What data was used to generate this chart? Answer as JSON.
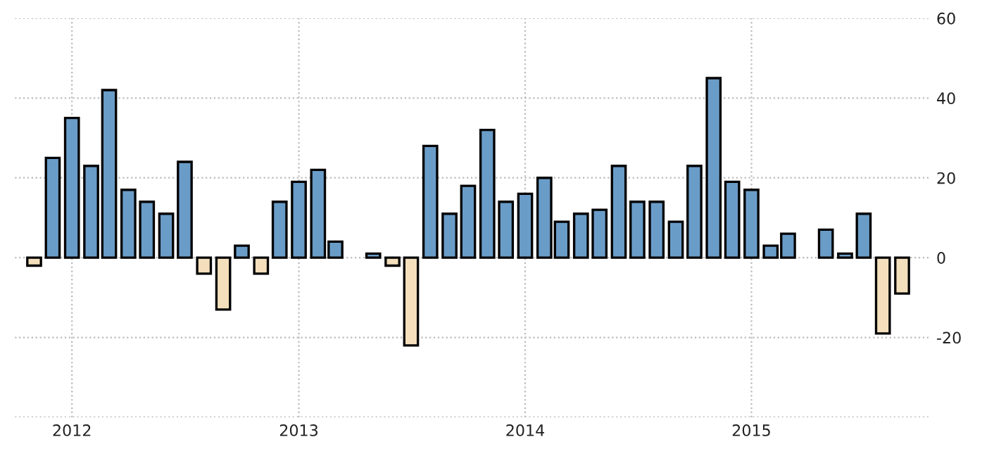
{
  "chart_data": {
    "type": "bar",
    "x": [
      "2011-11",
      "2011-12",
      "2012-01",
      "2012-02",
      "2012-03",
      "2012-04",
      "2012-05",
      "2012-06",
      "2012-07",
      "2012-08",
      "2012-09",
      "2012-10",
      "2012-11",
      "2012-12",
      "2013-01",
      "2013-02",
      "2013-03",
      "2013-04",
      "2013-05",
      "2013-06",
      "2013-07",
      "2013-08",
      "2013-09",
      "2013-10",
      "2013-11",
      "2013-12",
      "2014-01",
      "2014-02",
      "2014-03",
      "2014-04",
      "2014-05",
      "2014-06",
      "2014-07",
      "2014-08",
      "2014-09",
      "2014-10",
      "2014-11",
      "2014-12",
      "2015-01",
      "2015-02",
      "2015-03",
      "2015-04",
      "2015-05",
      "2015-06",
      "2015-07",
      "2015-08",
      "2015-09"
    ],
    "values": [
      -2,
      25,
      35,
      23,
      42,
      17,
      14,
      11,
      24,
      -4,
      -13,
      3,
      -4,
      14,
      19,
      22,
      4,
      null,
      1,
      -2,
      -22,
      28,
      11,
      18,
      32,
      14,
      16,
      20,
      9,
      11,
      12,
      23,
      14,
      14,
      9,
      23,
      45,
      19,
      17,
      3,
      6,
      null,
      7,
      1,
      11,
      -19,
      -9
    ],
    "colors": [
      "#f3dfbb",
      "#6a9cc8",
      "#6a9cc8",
      "#6a9cc8",
      "#6a9cc8",
      "#6a9cc8",
      "#6a9cc8",
      "#6a9cc8",
      "#6a9cc8",
      "#f3dfbb",
      "#f3dfbb",
      "#6a9cc8",
      "#f3dfbb",
      "#6a9cc8",
      "#6a9cc8",
      "#6a9cc8",
      "#6a9cc8",
      "#6a9cc8",
      "#6a9cc8",
      "#f3dfbb",
      "#f3dfbb",
      "#6a9cc8",
      "#6a9cc8",
      "#6a9cc8",
      "#6a9cc8",
      "#6a9cc8",
      "#6a9cc8",
      "#6a9cc8",
      "#6a9cc8",
      "#6a9cc8",
      "#6a9cc8",
      "#6a9cc8",
      "#6a9cc8",
      "#6a9cc8",
      "#6a9cc8",
      "#6a9cc8",
      "#6a9cc8",
      "#6a9cc8",
      "#6a9cc8",
      "#6a9cc8",
      "#6a9cc8",
      "#6a9cc8",
      "#6a9cc8",
      "#6a9cc8",
      "#6a9cc8",
      "#f3dfbb",
      "#f3dfbb"
    ],
    "xlim": [
      "2011-10",
      "2015-10-15"
    ],
    "xticks": [
      {
        "value": "2012",
        "label": "2012"
      },
      {
        "value": "2013",
        "label": "2013"
      },
      {
        "value": "2014",
        "label": "2014"
      },
      {
        "value": "2015",
        "label": "2015"
      }
    ],
    "ylim": [
      -40,
      60
    ],
    "yticks": [
      {
        "value": -40,
        "label": null
      },
      -20,
      0,
      20,
      40,
      60
    ],
    "grid": true
  }
}
